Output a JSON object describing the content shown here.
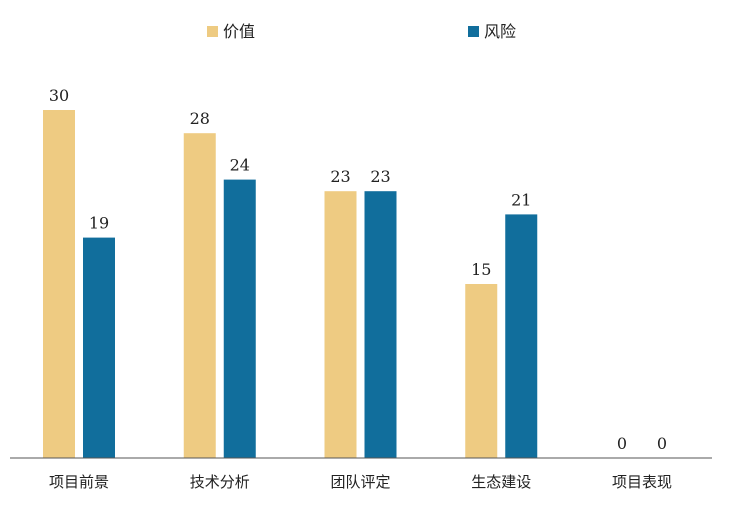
{
  "chart_data": {
    "type": "bar",
    "title": "",
    "xlabel": "",
    "ylabel": "",
    "categories": [
      "项目前景",
      "技术分析",
      "团队评定",
      "生态建设",
      "项目表现"
    ],
    "series": [
      {
        "name": "价值",
        "color": "#EECB82",
        "values": [
          30,
          28,
          23,
          15,
          0
        ]
      },
      {
        "name": "风险",
        "color": "#116E9C",
        "values": [
          19,
          24,
          23,
          21,
          0
        ]
      }
    ],
    "ylim": [
      0,
      30
    ],
    "grid": false,
    "legend": "top-center",
    "show_data_labels": true
  }
}
